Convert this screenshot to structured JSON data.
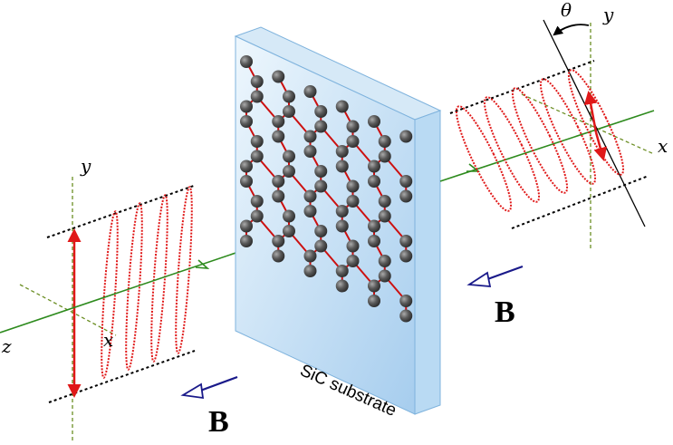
{
  "labels": {
    "y_left": "y",
    "x_left": "x",
    "z_left": "z",
    "theta": "θ",
    "y_right": "y",
    "x_right": "x",
    "b_left": "B",
    "b_right": "B",
    "substrate": "SiC substrate"
  },
  "colors": {
    "axis_green": "#2e8b1e",
    "polarization_red": "#e01818",
    "b_arrow_navy": "#1a1a8a",
    "slab_light": "#e8f3fc",
    "slab_dark": "#a9d0ef",
    "atom": "#555555",
    "bond": "#cc1111"
  },
  "icons": {
    "b_left_arrow": "arrow-icon",
    "b_right_arrow": "arrow-icon"
  }
}
